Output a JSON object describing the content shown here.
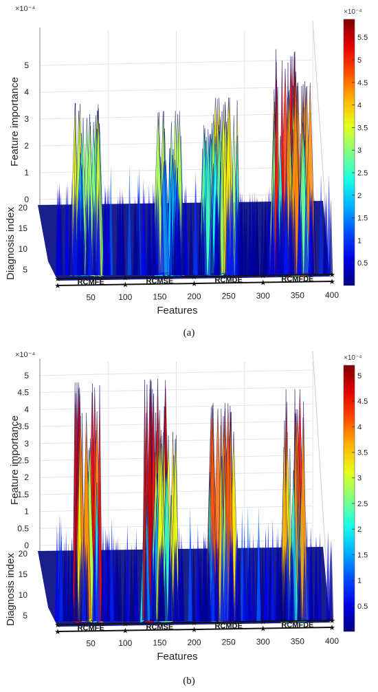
{
  "chart_data": [
    {
      "type": "surface",
      "panel_label": "(a)",
      "xlabel": "Features",
      "ylabel": "Diagnosis index",
      "zlabel": "Feature importance",
      "exponent_label": "×10⁻⁴",
      "x_ticks": [
        "50",
        "100",
        "150",
        "200",
        "250",
        "300",
        "350",
        "400"
      ],
      "y_ticks": [
        "20",
        "15",
        "10",
        "5"
      ],
      "z_ticks": [
        "0",
        "1",
        "2",
        "3",
        "4",
        "5"
      ],
      "zlim": [
        0,
        5.9
      ],
      "segments": [
        "RCMFE",
        "RCMSE",
        "RCMDE",
        "RCMFDE"
      ],
      "segment_boundaries": [
        0,
        100,
        200,
        300,
        400
      ],
      "colorbar": {
        "colormap": "jet",
        "exponent_label": "×10⁻⁴",
        "ticks": [
          "0.5",
          "1",
          "1.5",
          "2",
          "2.5",
          "3",
          "3.5",
          "4",
          "4.5",
          "5",
          "5.5"
        ],
        "max": 5.9
      },
      "peaks": [
        {
          "feature": 45,
          "importance": 3.6
        },
        {
          "feature": 165,
          "importance": 3.3
        },
        {
          "feature": 230,
          "importance": 2.9
        },
        {
          "feature": 245,
          "importance": 3.8
        },
        {
          "feature": 330,
          "importance": 5.6
        },
        {
          "feature": 352,
          "importance": 4.4
        }
      ]
    },
    {
      "type": "surface",
      "panel_label": "(b)",
      "xlabel": "Features",
      "ylabel": "Diagnosis index",
      "zlabel": "Feature importance",
      "exponent_label": "×10⁻⁴",
      "x_ticks": [
        "50",
        "100",
        "150",
        "200",
        "250",
        "300",
        "350",
        "400"
      ],
      "y_ticks": [
        "20",
        "15",
        "10",
        "5"
      ],
      "z_ticks": [
        "0",
        "0.5",
        "1",
        "1.5",
        "2",
        "2.5",
        "3",
        "3.5",
        "4",
        "4.5",
        "5"
      ],
      "zlim": [
        0,
        5.1
      ],
      "segments": [
        "RCMFE",
        "RCMSE",
        "RCMDE",
        "RCMFDE"
      ],
      "segment_boundaries": [
        0,
        100,
        200,
        300,
        400
      ],
      "colorbar": {
        "colormap": "jet",
        "exponent_label": "×10⁻⁴",
        "ticks": [
          "0.5",
          "1",
          "1.5",
          "2",
          "2.5",
          "3",
          "3.5",
          "4",
          "4.5",
          "5"
        ],
        "max": 5.2
      },
      "peaks": [
        {
          "feature": 45,
          "importance": 4.8
        },
        {
          "feature": 145,
          "importance": 4.9
        },
        {
          "feature": 160,
          "importance": 3.4
        },
        {
          "feature": 240,
          "importance": 4.2
        },
        {
          "feature": 345,
          "importance": 4.6
        }
      ]
    }
  ]
}
